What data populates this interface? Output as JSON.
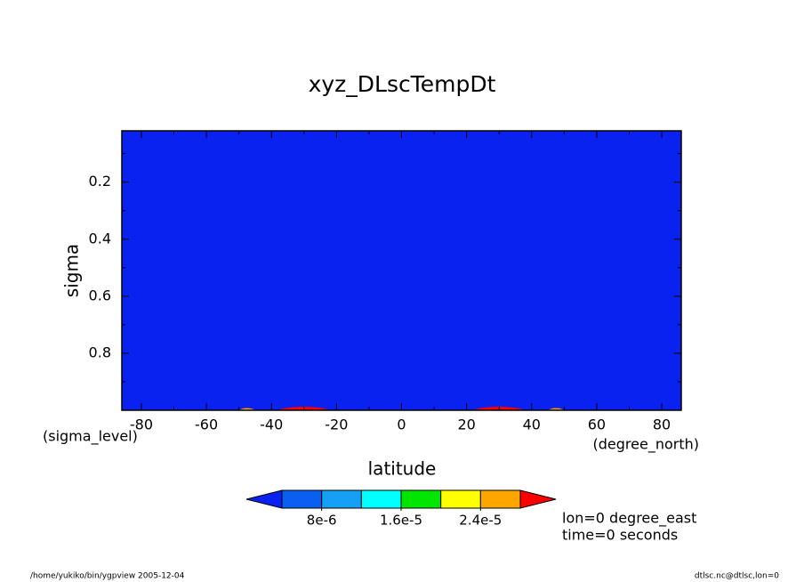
{
  "chart_data": {
    "type": "contour",
    "title": "xyz_DLscTempDt",
    "x_label": "latitude",
    "y_label": "sigma",
    "x_units": "(degree_north)",
    "y_units": "(sigma_level)",
    "xlim": [
      -86,
      86
    ],
    "ylim": [
      0.02,
      1.0
    ],
    "xticks": [
      -80,
      -60,
      -40,
      -20,
      0,
      20,
      40,
      60,
      80
    ],
    "yticks": [
      0.2,
      0.4,
      0.6,
      0.8
    ],
    "x_minor_ticks": [
      -70,
      -50,
      -30,
      -10,
      10,
      30,
      50,
      70
    ],
    "y_minor_ticks": [
      0.1,
      0.3,
      0.5,
      0.7,
      0.9
    ],
    "background_color": "#0a22f0",
    "regions": [
      {
        "lat": [
          -38,
          -22
        ],
        "sigma_top": 0.984,
        "color": "#ff0000"
      },
      {
        "lat": [
          22,
          38
        ],
        "sigma_top": 0.984,
        "color": "#ff0000"
      },
      {
        "lat": [
          -50,
          -45
        ],
        "sigma_top": 0.99,
        "color": "#ffa500"
      },
      {
        "lat": [
          45,
          50
        ],
        "sigma_top": 0.99,
        "color": "#ffa500"
      }
    ],
    "colorbar": {
      "levels": [
        4e-06,
        8e-06,
        1.2e-05,
        1.6e-05,
        2e-05,
        2.4e-05,
        2.8e-05
      ],
      "colors": [
        "#0a22f0",
        "#0a5ef0",
        "#14a0f5",
        "#00ffff",
        "#00e600",
        "#ffff00",
        "#ffa500",
        "#ff0000"
      ],
      "ticks": [
        {
          "value": 8e-06,
          "label": "8e-6"
        },
        {
          "value": 1.6e-05,
          "label": "1.6e-5"
        },
        {
          "value": 2.4e-05,
          "label": "2.4e-5"
        }
      ]
    },
    "annotations": [
      "lon=0 degree_east",
      "time=0 seconds"
    ],
    "footer_left": "/home/yukiko/bin/ygpview  2005-12-04",
    "footer_right": "dtlsc.nc@dtlsc,lon=0"
  }
}
